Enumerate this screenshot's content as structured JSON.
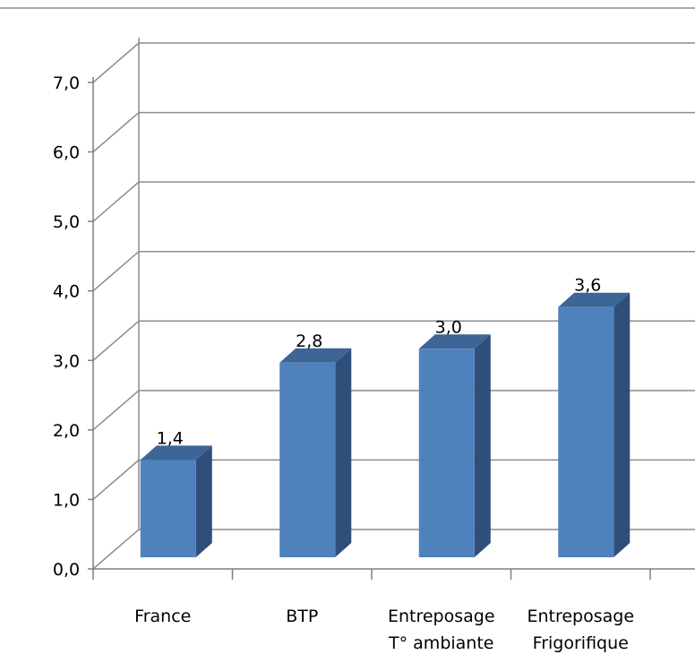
{
  "chart_data": {
    "type": "bar",
    "categories": [
      [
        "France"
      ],
      [
        "BTP"
      ],
      [
        "Entreposage",
        "T° ambiante"
      ],
      [
        "Entreposage",
        "Frigorifique"
      ]
    ],
    "values": [
      1.4,
      2.8,
      3.0,
      3.6
    ],
    "data_labels": [
      "1,4",
      "2,8",
      "3,0",
      "3,6"
    ],
    "y_ticks": [
      {
        "value": 0,
        "label": "0,0"
      },
      {
        "value": 1,
        "label": "1,0"
      },
      {
        "value": 2,
        "label": "2,0"
      },
      {
        "value": 3,
        "label": "3,0"
      },
      {
        "value": 4,
        "label": "4,0"
      },
      {
        "value": 5,
        "label": "5,0"
      },
      {
        "value": 6,
        "label": "6,0"
      },
      {
        "value": 7,
        "label": "7,0"
      }
    ],
    "ylim": [
      0,
      7
    ],
    "title": "",
    "xlabel": "",
    "ylabel": "",
    "grid": true,
    "three_d": true,
    "legend": "none",
    "colors": {
      "bar_front": "#4f81bd",
      "bar_side": "#2f4f7a",
      "bar_top": "#3d6596",
      "gridline": "#8c8c8c",
      "axis": "#7f7f7f"
    }
  }
}
